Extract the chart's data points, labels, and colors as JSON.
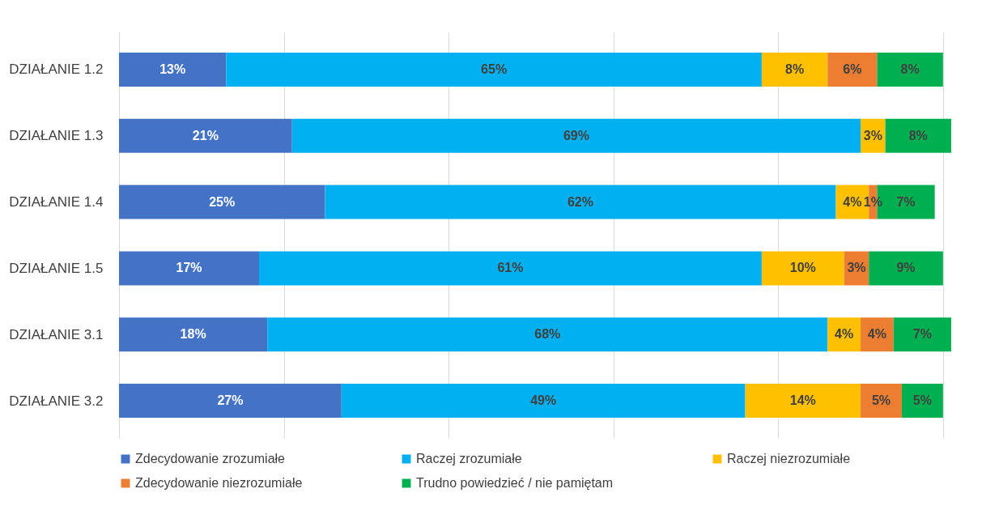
{
  "chart_data": {
    "type": "bar",
    "orientation": "horizontal",
    "stacked": true,
    "grid": "x",
    "tick_labels": "y",
    "legend": "bottom",
    "categories": [
      "DZIAŁANIE 1.2",
      "DZIAŁANIE 1.3",
      "DZIAŁANIE 1.4",
      "DZIAŁANIE 1.5",
      "DZIAŁANIE 3.1",
      "DZIAŁANIE 3.2"
    ],
    "series": [
      {
        "name": "Zdecydowanie zrozumiałe",
        "color": "#4472c4",
        "values": [
          13,
          21,
          25,
          17,
          18,
          27
        ],
        "value_labels": [
          "13%",
          "21%",
          "25%",
          "17%",
          "18%",
          "27%"
        ]
      },
      {
        "name": "Raczej zrozumiałe",
        "color": "#00b0f0",
        "values": [
          65,
          69,
          62,
          61,
          68,
          49
        ],
        "value_labels": [
          "65%",
          "69%",
          "62%",
          "61%",
          "68%",
          "49%"
        ]
      },
      {
        "name": "Raczej niezrozumiałe",
        "color": "#ffc000",
        "values": [
          8,
          3,
          4,
          10,
          4,
          14
        ],
        "value_labels": [
          "8%",
          "3%",
          "4%",
          "10%",
          "4%",
          "14%"
        ]
      },
      {
        "name": "Zdecydowanie niezrozumiałe",
        "color": "#ed7d31",
        "values": [
          6,
          null,
          1,
          3,
          4,
          5
        ],
        "value_labels": [
          "6%",
          null,
          "1%",
          "3%",
          "4%",
          "5%"
        ]
      },
      {
        "name": "Trudno powiedzieć / nie pamiętam",
        "color": "#00b050",
        "values": [
          8,
          8,
          7,
          9,
          7,
          5
        ],
        "value_labels": [
          "8%",
          "8%",
          "7%",
          "9%",
          "7%",
          "5%"
        ]
      }
    ]
  }
}
